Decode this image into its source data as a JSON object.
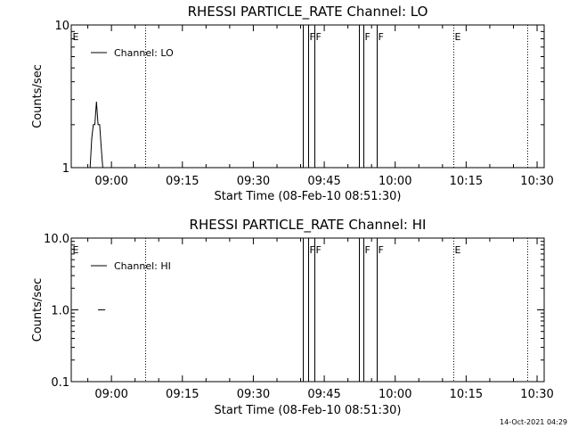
{
  "footer_timestamp": "14-Oct-2021 04:29",
  "chart_data": [
    {
      "type": "line",
      "title": "RHESSI PARTICLE_RATE Channel: LO",
      "xlabel": "Start Time (08-Feb-10 08:51:30)",
      "ylabel": "Counts/sec",
      "y_scale": "log",
      "ylim": [
        1,
        10
      ],
      "y_ticks": [
        {
          "value": 1,
          "label": "1"
        },
        {
          "value": 10,
          "label": "10"
        }
      ],
      "xlim": [
        "08:51:30",
        "10:31:30"
      ],
      "x_ticks": [
        "09:00",
        "09:15",
        "09:30",
        "09:45",
        "10:00",
        "10:15",
        "10:30"
      ],
      "grid": false,
      "legend_position": "top-left",
      "series": [
        {
          "name": "Channel: LO",
          "color": "#000000",
          "x": [
            "08:55:30",
            "08:55:50",
            "08:56:10",
            "08:56:30",
            "08:56:50",
            "08:57:10",
            "08:57:30",
            "08:57:50",
            "08:58:10"
          ],
          "y": [
            1.0,
            1.6,
            2.0,
            2.0,
            2.9,
            2.0,
            2.0,
            1.4,
            1.0
          ]
        }
      ],
      "annotations": [
        {
          "x": "08:51:30",
          "label": "E",
          "style": "none"
        },
        {
          "x": "09:07:05",
          "label": "",
          "style": "dotted"
        },
        {
          "x": "09:40:30",
          "label": "",
          "style": "solid"
        },
        {
          "x": "09:41:30",
          "label": "F",
          "style": "solid"
        },
        {
          "x": "09:42:50",
          "label": "F",
          "style": "solid"
        },
        {
          "x": "09:52:20",
          "label": "",
          "style": "solid"
        },
        {
          "x": "09:53:20",
          "label": "F",
          "style": "solid"
        },
        {
          "x": "09:56:10",
          "label": "F",
          "style": "solid"
        },
        {
          "x": "10:12:20",
          "label": "E",
          "style": "dotted"
        },
        {
          "x": "10:27:50",
          "label": "",
          "style": "dotted"
        }
      ]
    },
    {
      "type": "line",
      "title": "RHESSI PARTICLE_RATE Channel: HI",
      "xlabel": "Start Time (08-Feb-10 08:51:30)",
      "ylabel": "Counts/sec",
      "y_scale": "log",
      "ylim": [
        0.1,
        10
      ],
      "y_ticks": [
        {
          "value": 0.1,
          "label": "0.1"
        },
        {
          "value": 1,
          "label": "1.0"
        },
        {
          "value": 10,
          "label": "10.0"
        }
      ],
      "xlim": [
        "08:51:30",
        "10:31:30"
      ],
      "x_ticks": [
        "09:00",
        "09:15",
        "09:30",
        "09:45",
        "10:00",
        "10:15",
        "10:30"
      ],
      "grid": false,
      "legend_position": "top-left",
      "series": [
        {
          "name": "Channel: HI",
          "color": "#000000",
          "x": [
            "08:57:10",
            "08:58:40"
          ],
          "y": [
            1.0,
            1.0
          ]
        }
      ],
      "annotations": [
        {
          "x": "08:51:30",
          "label": "E",
          "style": "none"
        },
        {
          "x": "09:07:05",
          "label": "",
          "style": "dotted"
        },
        {
          "x": "09:40:30",
          "label": "",
          "style": "solid"
        },
        {
          "x": "09:41:30",
          "label": "F",
          "style": "solid"
        },
        {
          "x": "09:42:50",
          "label": "F",
          "style": "solid"
        },
        {
          "x": "09:52:20",
          "label": "",
          "style": "solid"
        },
        {
          "x": "09:53:20",
          "label": "F",
          "style": "solid"
        },
        {
          "x": "09:56:10",
          "label": "F",
          "style": "solid"
        },
        {
          "x": "10:12:20",
          "label": "E",
          "style": "dotted"
        },
        {
          "x": "10:27:50",
          "label": "",
          "style": "dotted"
        }
      ]
    }
  ]
}
